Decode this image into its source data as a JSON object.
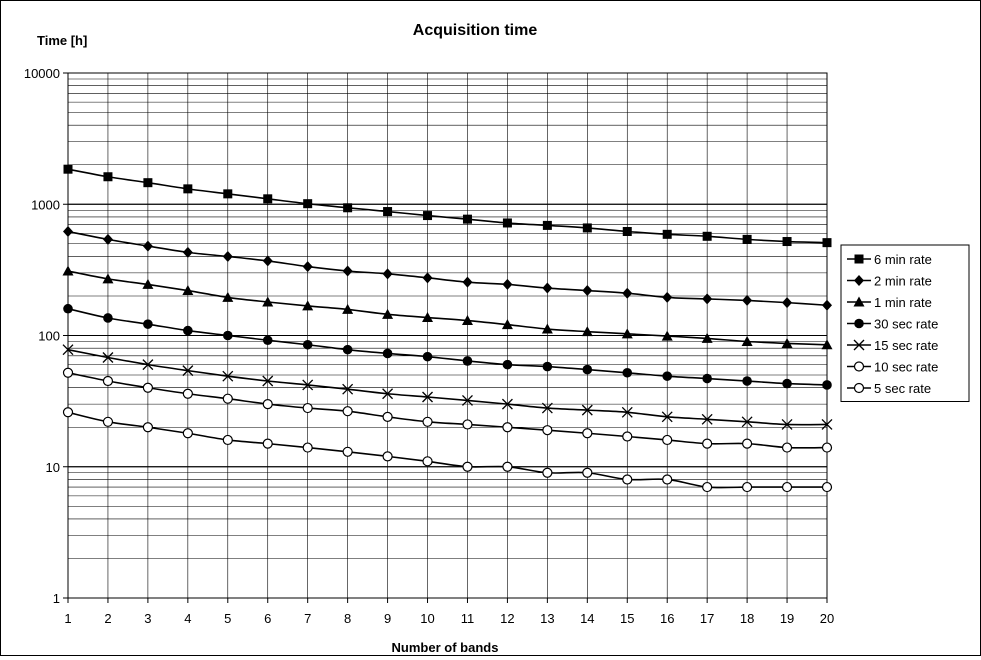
{
  "chart_data": {
    "type": "line",
    "title": "Acquisition time",
    "xlabel": "Number of bands",
    "ylabel": "Time [h]",
    "yscale": "log",
    "ylim": [
      1,
      10000
    ],
    "xlim": [
      1,
      20
    ],
    "grid": true,
    "legend_position": "right",
    "x": [
      1,
      2,
      3,
      4,
      5,
      6,
      7,
      8,
      9,
      10,
      11,
      12,
      13,
      14,
      15,
      16,
      17,
      18,
      19,
      20
    ],
    "y_ticks": [
      "1",
      "10",
      "100",
      "1000",
      "10000"
    ],
    "x_ticks": [
      "1",
      "2",
      "3",
      "4",
      "5",
      "6",
      "7",
      "8",
      "9",
      "10",
      "11",
      "12",
      "13",
      "14",
      "15",
      "16",
      "17",
      "18",
      "19",
      "20"
    ],
    "series": [
      {
        "name": "6 min rate",
        "marker": "square",
        "values": [
          1850,
          1620,
          1460,
          1310,
          1200,
          1100,
          1010,
          940,
          880,
          820,
          770,
          720,
          690,
          660,
          620,
          590,
          570,
          540,
          520,
          510
        ]
      },
      {
        "name": "2 min rate",
        "marker": "diamond",
        "values": [
          620,
          540,
          480,
          430,
          400,
          370,
          335,
          310,
          295,
          275,
          255,
          245,
          230,
          220,
          210,
          195,
          190,
          185,
          178,
          170
        ]
      },
      {
        "name": "1 min rate",
        "marker": "triangle",
        "values": [
          310,
          270,
          245,
          220,
          195,
          180,
          168,
          158,
          145,
          137,
          130,
          121,
          112,
          107,
          103,
          99,
          95,
          90,
          87,
          85
        ]
      },
      {
        "name": "30 sec rate",
        "marker": "circle",
        "values": [
          160,
          136,
          122,
          109,
          100,
          92,
          85,
          78,
          73,
          69,
          64,
          60,
          58,
          55,
          52,
          49,
          47,
          45,
          43,
          42
        ]
      },
      {
        "name": "15 sec rate",
        "marker": "x",
        "values": [
          78,
          68,
          60,
          54,
          49,
          45,
          42,
          39,
          36,
          34,
          32,
          30,
          28,
          27,
          26,
          24,
          23,
          22,
          21,
          21
        ]
      },
      {
        "name": "10 sec rate",
        "marker": "open-circle",
        "values": [
          52,
          45,
          40,
          36,
          33,
          30,
          28,
          26.5,
          24,
          22,
          21,
          20,
          19,
          18,
          17,
          16,
          15,
          15,
          14,
          14
        ]
      },
      {
        "name": "5 sec rate",
        "marker": "open-circle",
        "values": [
          26,
          22,
          20,
          18,
          16,
          15,
          14,
          13,
          12,
          11,
          10,
          10,
          9,
          9,
          8,
          8,
          7,
          7,
          7,
          7
        ]
      }
    ]
  }
}
